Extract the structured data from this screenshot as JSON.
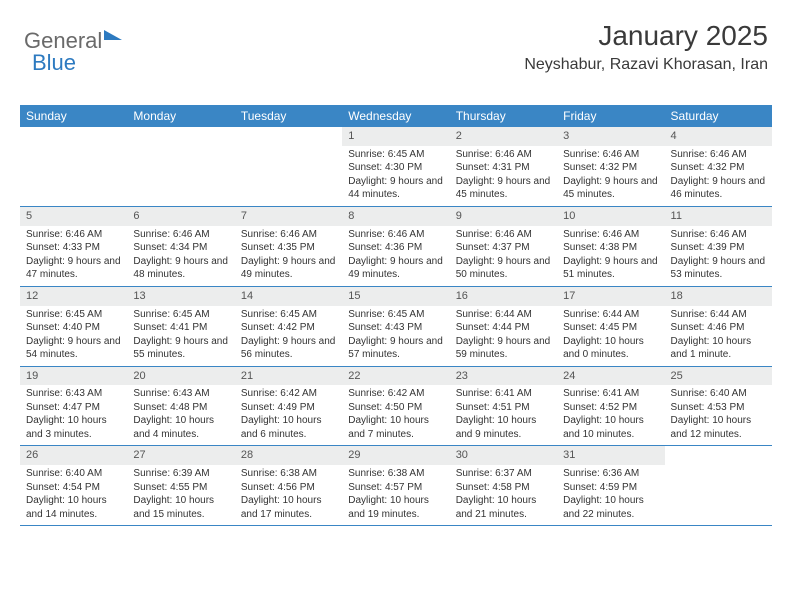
{
  "brand": {
    "textGray": "General",
    "textBlue": "Blue"
  },
  "header": {
    "monthYear": "January 2025",
    "location": "Neyshabur, Razavi Khorasan, Iran"
  },
  "colors": {
    "headerBlue": "#3a86c5",
    "dayNumBg": "#eceded",
    "textDark": "#333333",
    "logoGray": "#6a6a6a",
    "logoBlue": "#2d7ac0",
    "background": "#ffffff"
  },
  "daysOfWeek": [
    "Sunday",
    "Monday",
    "Tuesday",
    "Wednesday",
    "Thursday",
    "Friday",
    "Saturday"
  ],
  "weeks": [
    [
      null,
      null,
      null,
      {
        "n": "1",
        "sr": "6:45 AM",
        "ss": "4:30 PM",
        "dl": "9 hours and 44 minutes."
      },
      {
        "n": "2",
        "sr": "6:46 AM",
        "ss": "4:31 PM",
        "dl": "9 hours and 45 minutes."
      },
      {
        "n": "3",
        "sr": "6:46 AM",
        "ss": "4:32 PM",
        "dl": "9 hours and 45 minutes."
      },
      {
        "n": "4",
        "sr": "6:46 AM",
        "ss": "4:32 PM",
        "dl": "9 hours and 46 minutes."
      }
    ],
    [
      {
        "n": "5",
        "sr": "6:46 AM",
        "ss": "4:33 PM",
        "dl": "9 hours and 47 minutes."
      },
      {
        "n": "6",
        "sr": "6:46 AM",
        "ss": "4:34 PM",
        "dl": "9 hours and 48 minutes."
      },
      {
        "n": "7",
        "sr": "6:46 AM",
        "ss": "4:35 PM",
        "dl": "9 hours and 49 minutes."
      },
      {
        "n": "8",
        "sr": "6:46 AM",
        "ss": "4:36 PM",
        "dl": "9 hours and 49 minutes."
      },
      {
        "n": "9",
        "sr": "6:46 AM",
        "ss": "4:37 PM",
        "dl": "9 hours and 50 minutes."
      },
      {
        "n": "10",
        "sr": "6:46 AM",
        "ss": "4:38 PM",
        "dl": "9 hours and 51 minutes."
      },
      {
        "n": "11",
        "sr": "6:46 AM",
        "ss": "4:39 PM",
        "dl": "9 hours and 53 minutes."
      }
    ],
    [
      {
        "n": "12",
        "sr": "6:45 AM",
        "ss": "4:40 PM",
        "dl": "9 hours and 54 minutes."
      },
      {
        "n": "13",
        "sr": "6:45 AM",
        "ss": "4:41 PM",
        "dl": "9 hours and 55 minutes."
      },
      {
        "n": "14",
        "sr": "6:45 AM",
        "ss": "4:42 PM",
        "dl": "9 hours and 56 minutes."
      },
      {
        "n": "15",
        "sr": "6:45 AM",
        "ss": "4:43 PM",
        "dl": "9 hours and 57 minutes."
      },
      {
        "n": "16",
        "sr": "6:44 AM",
        "ss": "4:44 PM",
        "dl": "9 hours and 59 minutes."
      },
      {
        "n": "17",
        "sr": "6:44 AM",
        "ss": "4:45 PM",
        "dl": "10 hours and 0 minutes."
      },
      {
        "n": "18",
        "sr": "6:44 AM",
        "ss": "4:46 PM",
        "dl": "10 hours and 1 minute."
      }
    ],
    [
      {
        "n": "19",
        "sr": "6:43 AM",
        "ss": "4:47 PM",
        "dl": "10 hours and 3 minutes."
      },
      {
        "n": "20",
        "sr": "6:43 AM",
        "ss": "4:48 PM",
        "dl": "10 hours and 4 minutes."
      },
      {
        "n": "21",
        "sr": "6:42 AM",
        "ss": "4:49 PM",
        "dl": "10 hours and 6 minutes."
      },
      {
        "n": "22",
        "sr": "6:42 AM",
        "ss": "4:50 PM",
        "dl": "10 hours and 7 minutes."
      },
      {
        "n": "23",
        "sr": "6:41 AM",
        "ss": "4:51 PM",
        "dl": "10 hours and 9 minutes."
      },
      {
        "n": "24",
        "sr": "6:41 AM",
        "ss": "4:52 PM",
        "dl": "10 hours and 10 minutes."
      },
      {
        "n": "25",
        "sr": "6:40 AM",
        "ss": "4:53 PM",
        "dl": "10 hours and 12 minutes."
      }
    ],
    [
      {
        "n": "26",
        "sr": "6:40 AM",
        "ss": "4:54 PM",
        "dl": "10 hours and 14 minutes."
      },
      {
        "n": "27",
        "sr": "6:39 AM",
        "ss": "4:55 PM",
        "dl": "10 hours and 15 minutes."
      },
      {
        "n": "28",
        "sr": "6:38 AM",
        "ss": "4:56 PM",
        "dl": "10 hours and 17 minutes."
      },
      {
        "n": "29",
        "sr": "6:38 AM",
        "ss": "4:57 PM",
        "dl": "10 hours and 19 minutes."
      },
      {
        "n": "30",
        "sr": "6:37 AM",
        "ss": "4:58 PM",
        "dl": "10 hours and 21 minutes."
      },
      {
        "n": "31",
        "sr": "6:36 AM",
        "ss": "4:59 PM",
        "dl": "10 hours and 22 minutes."
      },
      null
    ]
  ],
  "labels": {
    "sunrise": "Sunrise:",
    "sunset": "Sunset:",
    "daylight": "Daylight:"
  }
}
